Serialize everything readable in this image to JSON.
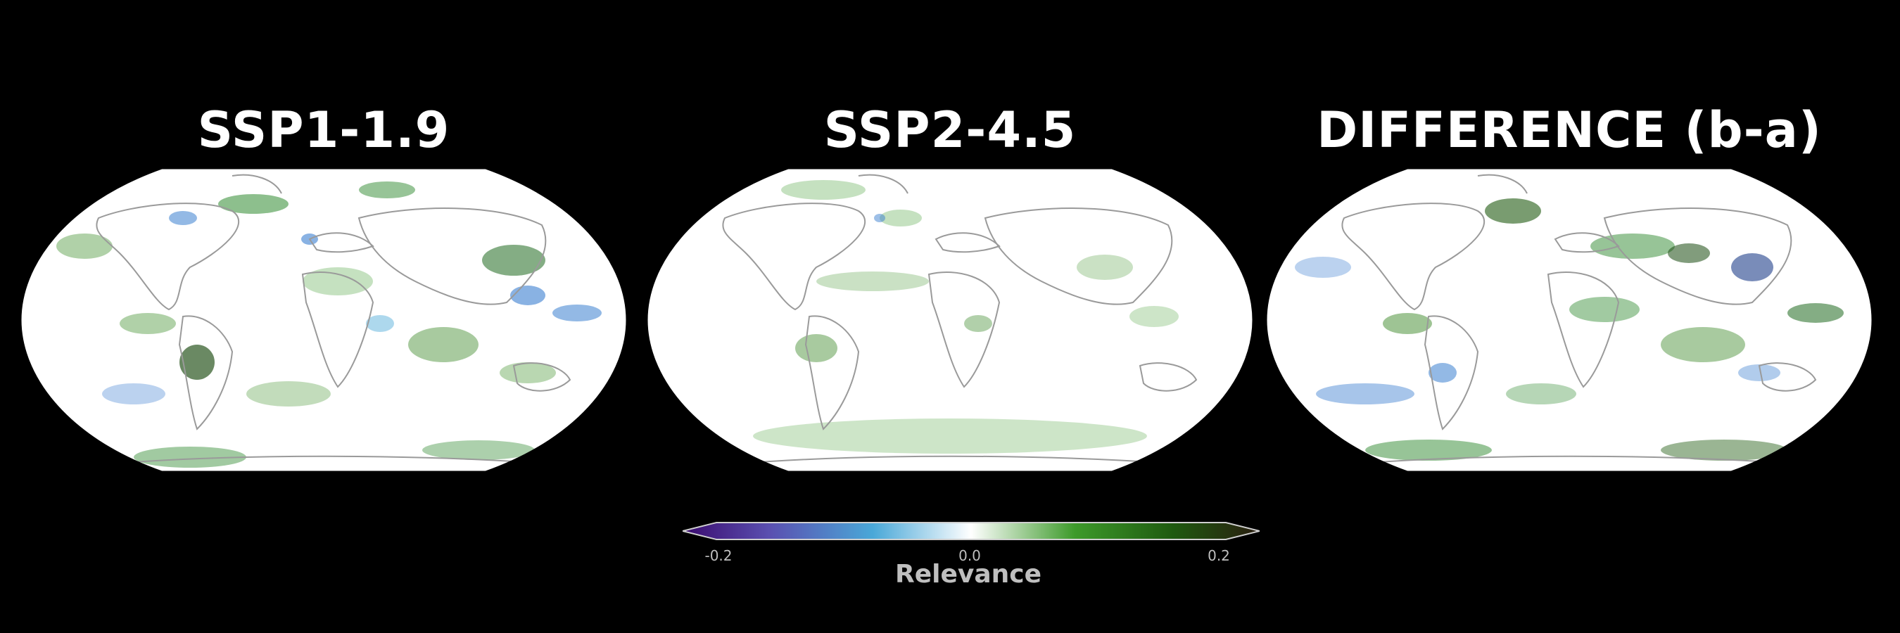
{
  "panels": [
    {
      "title": "SSP1-1.9"
    },
    {
      "title": "SSP2-4.5"
    },
    {
      "title": "DIFFERENCE (b-a)"
    }
  ],
  "colorbar": {
    "label": "Relevance",
    "ticks": [
      "-0.2",
      "0.0",
      "0.2"
    ],
    "colors": [
      "#3a0a6e",
      "#5a4fb0",
      "#4aa8d8",
      "#ffffff",
      "#3d9a2a",
      "#1f5a10",
      "#2a1d10"
    ]
  },
  "map_colors": {
    "background": "#ffffff",
    "positive": "#2f8a2f",
    "negative": "#3b7fd0",
    "coast": "#9a9a9a"
  }
}
